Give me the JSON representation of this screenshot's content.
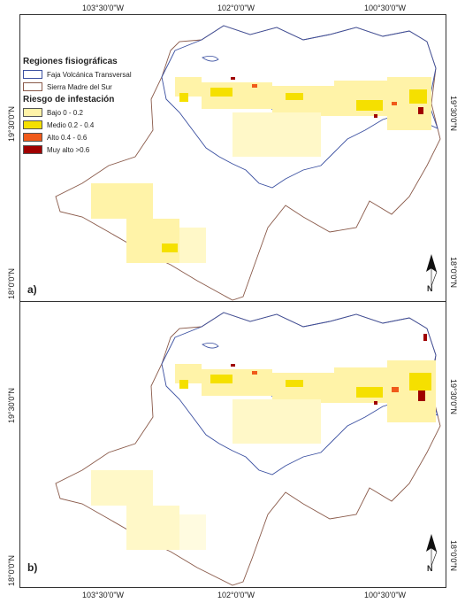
{
  "axes": {
    "top_labels": [
      "103°30'0\"W",
      "102°0'0\"W",
      "100°30'0\"W"
    ],
    "bottom_labels": [
      "103°30'0\"W",
      "102°0'0\"W",
      "100°30'0\"W"
    ],
    "left_labels": [
      "19°30'0\"N",
      "18°0'0\"N",
      "19°30'0\"N",
      "18°0'0\"N"
    ],
    "right_labels": [
      "19°30'0\"N",
      "18°0'0\"N",
      "19°30'0\"N",
      "18°0'0\"N"
    ]
  },
  "legend": {
    "title_regions": "Regiones fisiográficas",
    "regions": [
      {
        "label": "Faja Volcánica Transversal",
        "color": "#3a4fa0"
      },
      {
        "label": "Sierra Madre del Sur",
        "color": "#8a5a4a"
      }
    ],
    "title_risk": "Riesgo de infestación",
    "risk": [
      {
        "label": "Bajo 0 - 0.2",
        "color": "#fff3a8"
      },
      {
        "label": "Medio 0.2 - 0.4",
        "color": "#f5e000"
      },
      {
        "label": "Alto 0.4 - 0.6",
        "color": "#f05a1a"
      },
      {
        "label": "Muy alto >0.6",
        "color": "#a00000"
      }
    ]
  },
  "panels": [
    {
      "letter": "a)",
      "north_label": "N"
    },
    {
      "letter": "b)",
      "north_label": "N"
    }
  ]
}
